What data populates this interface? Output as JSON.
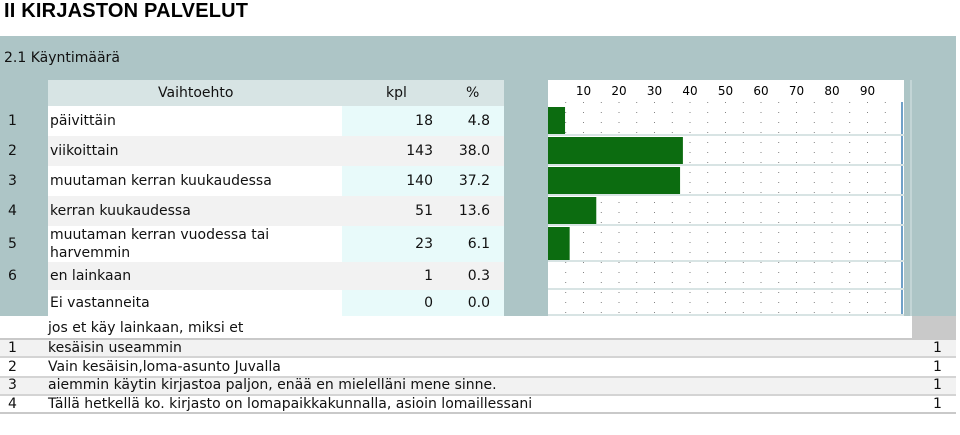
{
  "title": "II KIRJASTON PALVELUT",
  "section": "2.1 Käyntimäärä",
  "headers": {
    "option": "Vaihtoehto",
    "count": "kpl",
    "percent": "%"
  },
  "rows": [
    {
      "num": "1",
      "label": "päivittäin",
      "count": "18",
      "percent": "4.8"
    },
    {
      "num": "2",
      "label": "viikoittain",
      "count": "143",
      "percent": "38.0"
    },
    {
      "num": "3",
      "label": "muutaman kerran kuukaudessa",
      "count": "140",
      "percent": "37.2"
    },
    {
      "num": "4",
      "label": "kerran kuukaudessa",
      "count": "51",
      "percent": "13.6"
    },
    {
      "num": "5",
      "label_line1": "muutaman kerran vuodessa tai",
      "label_line2": "harvemmin",
      "count": "23",
      "percent": "6.1"
    },
    {
      "num": "6",
      "label": "en lainkaan",
      "count": "1",
      "percent": "0.3"
    },
    {
      "num": "",
      "label": "Ei vastanneita",
      "count": "0",
      "percent": "0.0"
    }
  ],
  "chart_data": {
    "type": "bar",
    "orientation": "horizontal",
    "categories": [
      "päivittäin",
      "viikoittain",
      "muutaman kerran kuukaudessa",
      "kerran kuukaudessa",
      "muutaman kerran vuodessa tai harvemmin",
      "en lainkaan",
      "Ei vastanneita"
    ],
    "values": [
      4.8,
      38.0,
      37.2,
      13.6,
      6.1,
      0.3,
      0.0
    ],
    "ticks": [
      "10",
      "20",
      "30",
      "40",
      "50",
      "60",
      "70",
      "80",
      "90"
    ],
    "xlim": [
      0,
      100
    ],
    "bar_color": "#0c6c10",
    "grid": true
  },
  "open_question": {
    "prompt": "jos et käy lainkaan, miksi et",
    "answers": [
      {
        "num": "1",
        "text": "kesäisin useammin",
        "count": "1"
      },
      {
        "num": "2",
        "text": "Vain kesäisin,loma-asunto Juvalla",
        "count": "1"
      },
      {
        "num": "3",
        "text": "aiemmin käytin kirjastoa paljon, enää en mielelläni mene sinne.",
        "count": "1"
      },
      {
        "num": "4",
        "text": "Tällä hetkellä ko. kirjasto on lomapaikkakunnalla, asioin lomaillessani",
        "count": "1"
      }
    ]
  },
  "colors": {
    "accent_teal": "#adc5c6",
    "bar_green": "#0c6c10",
    "text_blue": "#1f2fa8"
  }
}
